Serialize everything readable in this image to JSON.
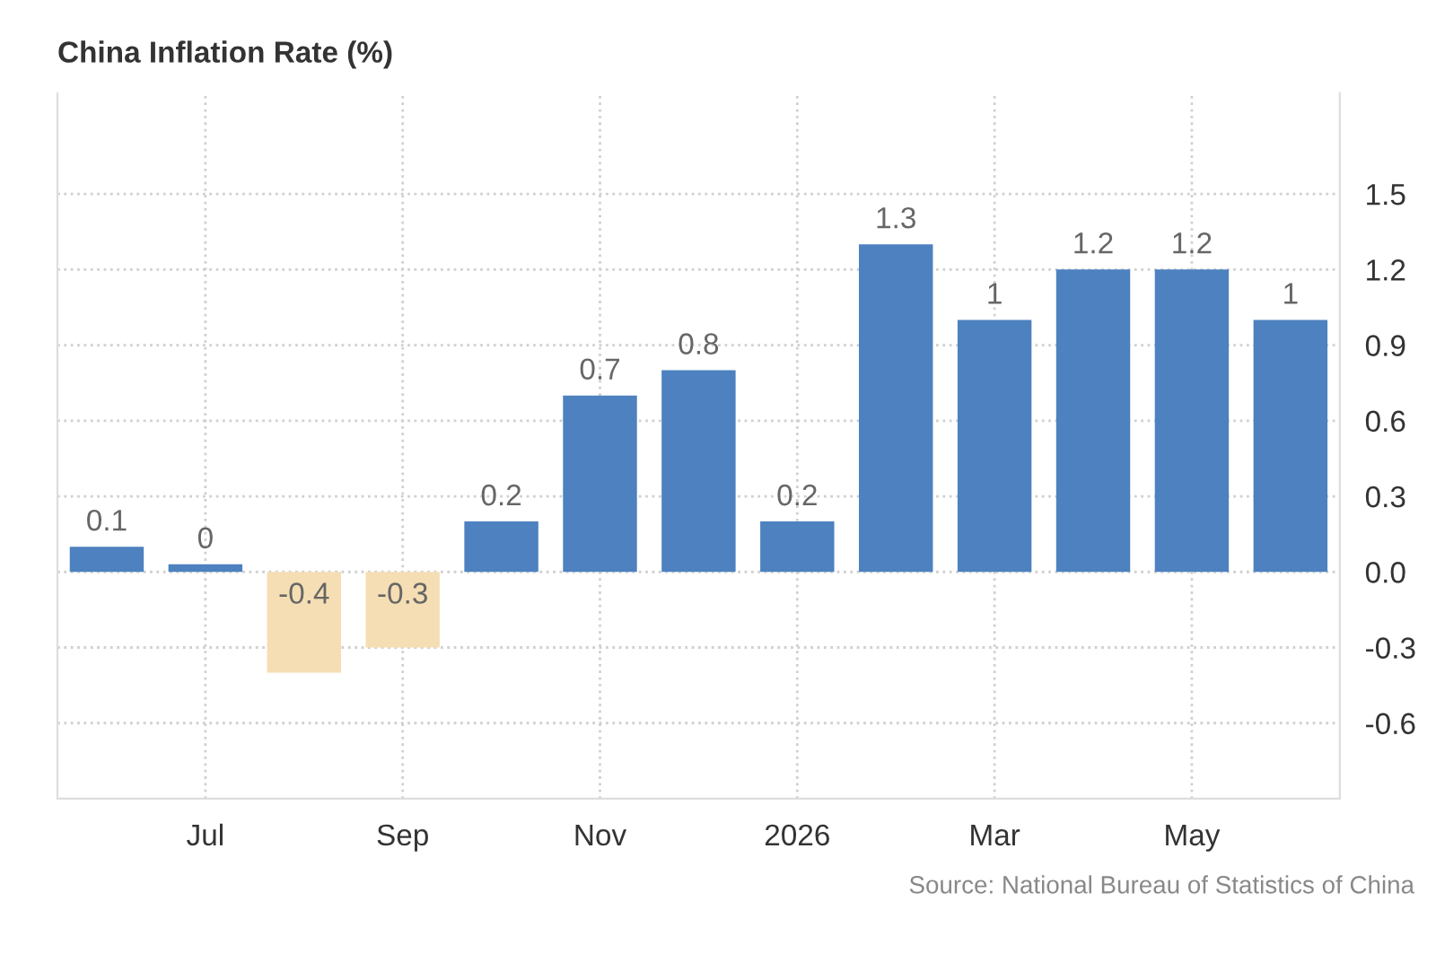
{
  "chart_data": {
    "type": "bar",
    "title": "China Inflation Rate (%)",
    "categories": [
      null,
      "Jul",
      null,
      "Sep",
      null,
      "Nov",
      null,
      "2026",
      null,
      "Mar",
      null,
      "May",
      null
    ],
    "values": [
      0.1,
      0.03,
      -0.4,
      -0.3,
      0.2,
      0.7,
      0.8,
      0.2,
      1.3,
      1,
      1.2,
      1.2,
      1
    ],
    "value_labels": [
      "0.1",
      "0",
      "-0.4",
      "-0.3",
      "0.2",
      "0.7",
      "0.8",
      "0.2",
      "1.3",
      "1",
      "1.2",
      "1.2",
      "1"
    ],
    "colors": [
      "#4d81bf",
      "#4d81bf",
      "#f5deb3",
      "#f5deb3",
      "#4d81bf",
      "#4d81bf",
      "#4d81bf",
      "#4d81bf",
      "#4d81bf",
      "#4d81bf",
      "#4d81bf",
      "#4d81bf",
      "#4d81bf"
    ],
    "ylim": [
      -0.9,
      1.9
    ],
    "yticks": [
      -0.6,
      -0.3,
      {
        "value": 0,
        "label": "0.0"
      },
      0.3,
      0.6,
      0.9,
      1.2,
      1.5
    ],
    "grid": true,
    "annotations": [
      "Source: National Bureau of Statistics of China"
    ]
  }
}
